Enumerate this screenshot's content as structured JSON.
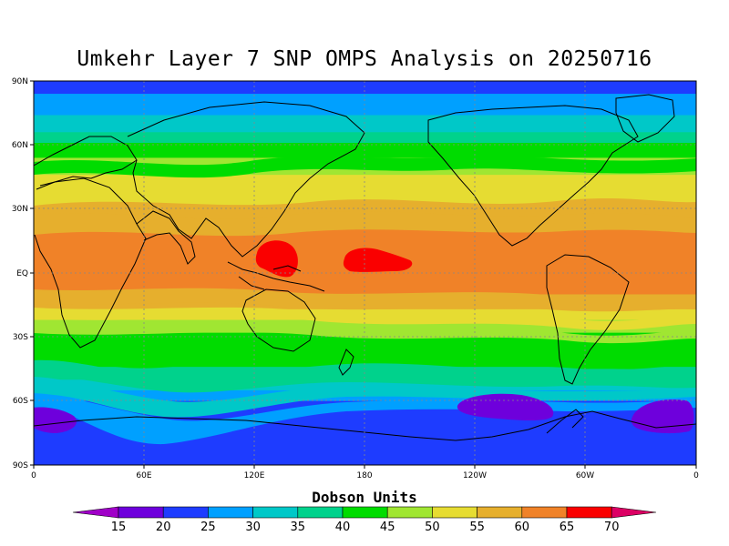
{
  "title": "Umkehr Layer 7 SNP OMPS Analysis on 20250716",
  "colorbar": {
    "title": "Dobson Units",
    "levels": [
      15,
      20,
      25,
      30,
      35,
      40,
      45,
      50,
      55,
      60,
      65,
      70
    ],
    "colors": [
      "#a000c8",
      "#6e00dc",
      "#1e3cff",
      "#00a0ff",
      "#00c8c8",
      "#00d28c",
      "#00dc00",
      "#a0e632",
      "#e6dc32",
      "#e6af2d",
      "#f08228",
      "#fa0000",
      "#dc0064"
    ]
  },
  "axes": {
    "lat_labels": [
      "90N",
      "60N",
      "30N",
      "EQ",
      "30S",
      "60S",
      "90S"
    ],
    "lon_labels": [
      "0",
      "60E",
      "120E",
      "180",
      "120W",
      "60W",
      "0"
    ]
  },
  "field_bands": [
    {
      "value": 25,
      "color": "#1e3cff",
      "lat_top": 90,
      "lat_bottom": 84
    },
    {
      "value": 30,
      "color": "#00a0ff",
      "lat_top": 84,
      "lat_bottom": 74
    },
    {
      "value": 35,
      "color": "#00c8c8",
      "lat_top": 74,
      "lat_bottom": 66
    },
    {
      "value": 40,
      "color": "#00d28c",
      "lat_top": 66,
      "lat_bottom": 61
    },
    {
      "value": 45,
      "color": "#00dc00",
      "lat_top": 61,
      "lat_bottom": 54
    },
    {
      "value": 50,
      "color": "#a0e632",
      "lat_top": 54,
      "lat_bottom": 46
    },
    {
      "value": 55,
      "color": "#e6dc32",
      "lat_top": 46,
      "lat_bottom": 36
    },
    {
      "value": 60,
      "color": "#e6af2d",
      "lat_top": 36,
      "lat_bottom": 24
    },
    {
      "value": 65,
      "color": "#f08228",
      "lat_top": 24,
      "lat_bottom": -10
    },
    {
      "value": 60,
      "color": "#e6af2d",
      "lat_top": -10,
      "lat_bottom": -17
    },
    {
      "value": 55,
      "color": "#e6dc32",
      "lat_top": -17,
      "lat_bottom": -22
    },
    {
      "value": 50,
      "color": "#a0e632",
      "lat_top": -22,
      "lat_bottom": -28
    },
    {
      "value": 45,
      "color": "#00dc00",
      "lat_top": -28,
      "lat_bottom": -44
    },
    {
      "value": 40,
      "color": "#00d28c",
      "lat_top": -44,
      "lat_bottom": -50
    },
    {
      "value": 35,
      "color": "#00c8c8",
      "lat_top": -50,
      "lat_bottom": -55
    },
    {
      "value": 30,
      "color": "#00a0ff",
      "lat_top": -55,
      "lat_bottom": -60
    },
    {
      "value": 25,
      "color": "#1e3cff",
      "lat_top": -60,
      "lat_bottom": -90
    }
  ],
  "maxima": [
    {
      "value": 70,
      "color": "#fa0000",
      "region": "western Pacific near Philippines"
    },
    {
      "value": 70,
      "color": "#fa0000",
      "region": "central Pacific near dateline"
    }
  ],
  "minima": [
    {
      "value": 20,
      "color": "#6e00dc",
      "region": "southern Atlantic / Antarctic edge"
    },
    {
      "value": 20,
      "color": "#6e00dc",
      "region": "South Pacific near 60S 130W"
    },
    {
      "value": 20,
      "color": "#6e00dc",
      "region": "southwest Atlantic near 60S 20W"
    }
  ]
}
